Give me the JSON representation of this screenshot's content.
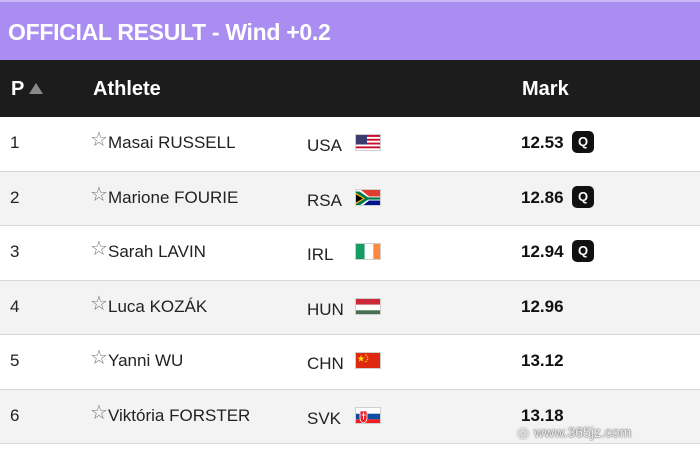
{
  "banner": {
    "title": "OFFICIAL RESULT - Wind +0.2",
    "color": "#a98df0"
  },
  "header": {
    "position": "P",
    "athlete": "Athlete",
    "mark": "Mark",
    "sort_icon": "sort-ascending-icon"
  },
  "rows": [
    {
      "rank": "1",
      "name": "Masai RUSSELL",
      "country": "USA",
      "flag": "usa",
      "mark": "12.53",
      "q": "Q"
    },
    {
      "rank": "2",
      "name": "Marione FOURIE",
      "country": "RSA",
      "flag": "rsa",
      "mark": "12.86",
      "q": "Q"
    },
    {
      "rank": "3",
      "name": "Sarah LAVIN",
      "country": "IRL",
      "flag": "irl",
      "mark": "12.94",
      "q": "Q"
    },
    {
      "rank": "4",
      "name": "Luca KOZÁK",
      "country": "HUN",
      "flag": "hun",
      "mark": "12.96",
      "q": ""
    },
    {
      "rank": "5",
      "name": "Yanni WU",
      "country": "CHN",
      "flag": "chn",
      "mark": "13.12",
      "q": ""
    },
    {
      "rank": "6",
      "name": "Viktória FORSTER",
      "country": "SVK",
      "flag": "svk",
      "mark": "13.18",
      "q": ""
    }
  ],
  "watermark": {
    "text": "www.365jz.com"
  }
}
